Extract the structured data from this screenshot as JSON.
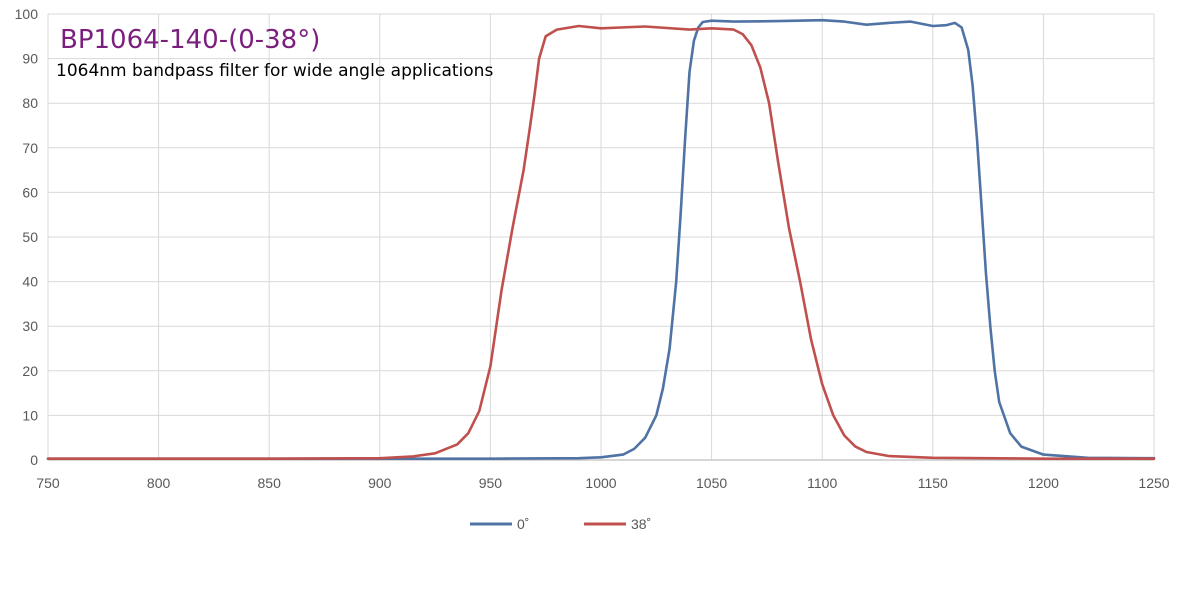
{
  "chart_data": {
    "type": "line",
    "title": "BP1064-140-(0-38°)",
    "subtitle": "1064nm bandpass filter for wide angle applications",
    "xlabel": "",
    "ylabel": "",
    "xlim": [
      750,
      1250
    ],
    "ylim": [
      0,
      100
    ],
    "xticks": [
      750,
      800,
      850,
      900,
      950,
      1000,
      1050,
      1100,
      1150,
      1200,
      1250
    ],
    "yticks": [
      0,
      10,
      20,
      30,
      40,
      50,
      60,
      70,
      80,
      90,
      100
    ],
    "grid": true,
    "legend_position": "bottom",
    "series": [
      {
        "name": "0˚",
        "color": "#4f73a4",
        "x": [
          750,
          850,
          950,
          990,
          1000,
          1010,
          1015,
          1020,
          1025,
          1028,
          1031,
          1034,
          1036,
          1038,
          1040,
          1042,
          1044,
          1046,
          1050,
          1060,
          1080,
          1100,
          1110,
          1120,
          1130,
          1140,
          1150,
          1156,
          1160,
          1163,
          1166,
          1168,
          1170,
          1172,
          1174,
          1176,
          1178,
          1180,
          1185,
          1190,
          1200,
          1220,
          1250
        ],
        "y": [
          0.3,
          0.3,
          0.3,
          0.4,
          0.6,
          1.2,
          2.5,
          5,
          10,
          16,
          25,
          40,
          55,
          72,
          87,
          94,
          97,
          98.2,
          98.5,
          98.3,
          98.4,
          98.6,
          98.3,
          97.6,
          98,
          98.3,
          97.3,
          97.5,
          98,
          97,
          92,
          84,
          72,
          57,
          42,
          30,
          20,
          13,
          6,
          3,
          1.2,
          0.5,
          0.4
        ]
      },
      {
        "name": "38˚",
        "color": "#c0504d",
        "x": [
          750,
          850,
          900,
          915,
          925,
          935,
          940,
          945,
          950,
          955,
          960,
          965,
          968,
          970,
          972,
          975,
          980,
          990,
          1000,
          1020,
          1040,
          1050,
          1060,
          1064,
          1068,
          1072,
          1076,
          1080,
          1085,
          1090,
          1095,
          1100,
          1105,
          1110,
          1115,
          1120,
          1130,
          1150,
          1200,
          1250
        ],
        "y": [
          0.3,
          0.3,
          0.4,
          0.8,
          1.5,
          3.5,
          6,
          11,
          21,
          38,
          52,
          65,
          75,
          82,
          90,
          95,
          96.5,
          97.3,
          96.8,
          97.2,
          96.5,
          96.8,
          96.5,
          95.5,
          93,
          88,
          80,
          67,
          52,
          40,
          27,
          17,
          10,
          5.5,
          3,
          1.8,
          0.9,
          0.5,
          0.3,
          0.3
        ]
      }
    ]
  }
}
